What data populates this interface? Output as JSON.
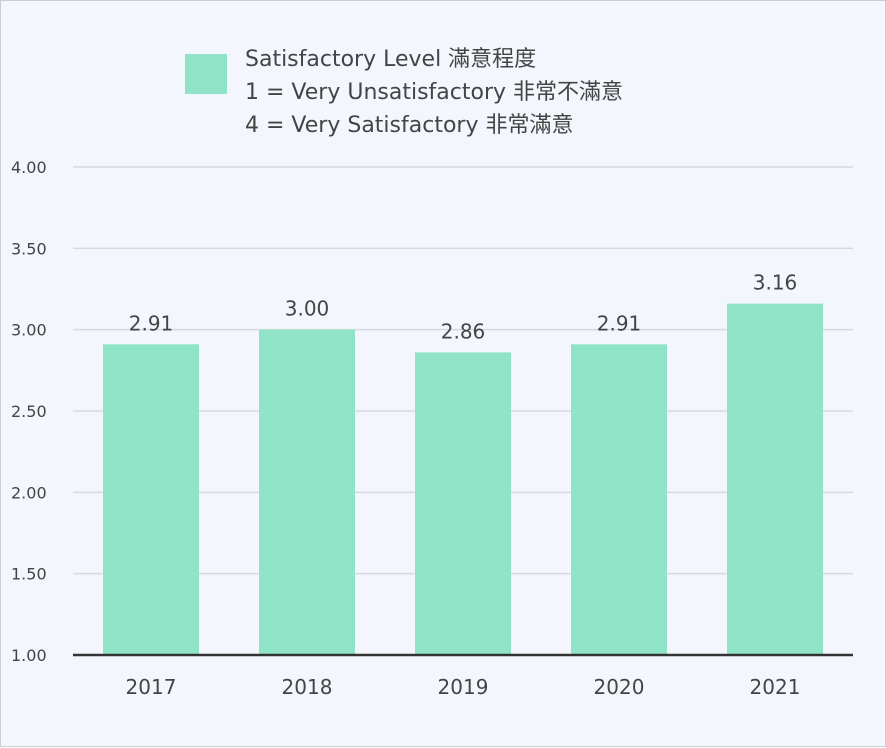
{
  "chart_data": {
    "type": "bar",
    "categories": [
      "2017",
      "2018",
      "2019",
      "2020",
      "2021"
    ],
    "series": [
      {
        "name": "Satisfactory Level 滿意程度",
        "values": [
          2.91,
          3.0,
          2.86,
          2.91,
          3.16
        ],
        "data_labels": [
          "2.91",
          "3.00",
          "2.86",
          "2.91",
          "3.16"
        ],
        "color": "#8fe3c7"
      }
    ],
    "legend_notes": [
      "1 = Very Unsatisfactory 非常不滿意",
      "4 = Very Satisfactory 非常滿意"
    ],
    "legend_position": "top",
    "ylim": [
      1.0,
      4.0
    ],
    "yticks": [
      1.0,
      1.5,
      2.0,
      2.5,
      3.0,
      3.5,
      4.0
    ],
    "ytick_labels": [
      "1.00",
      "1.50",
      "2.00",
      "2.50",
      "3.00",
      "3.50",
      "4.00"
    ],
    "grid": true,
    "colors": {
      "background": "#f3f7fd",
      "gridline": "#d6d9de",
      "axis": "#333333",
      "text": "#444444"
    }
  }
}
